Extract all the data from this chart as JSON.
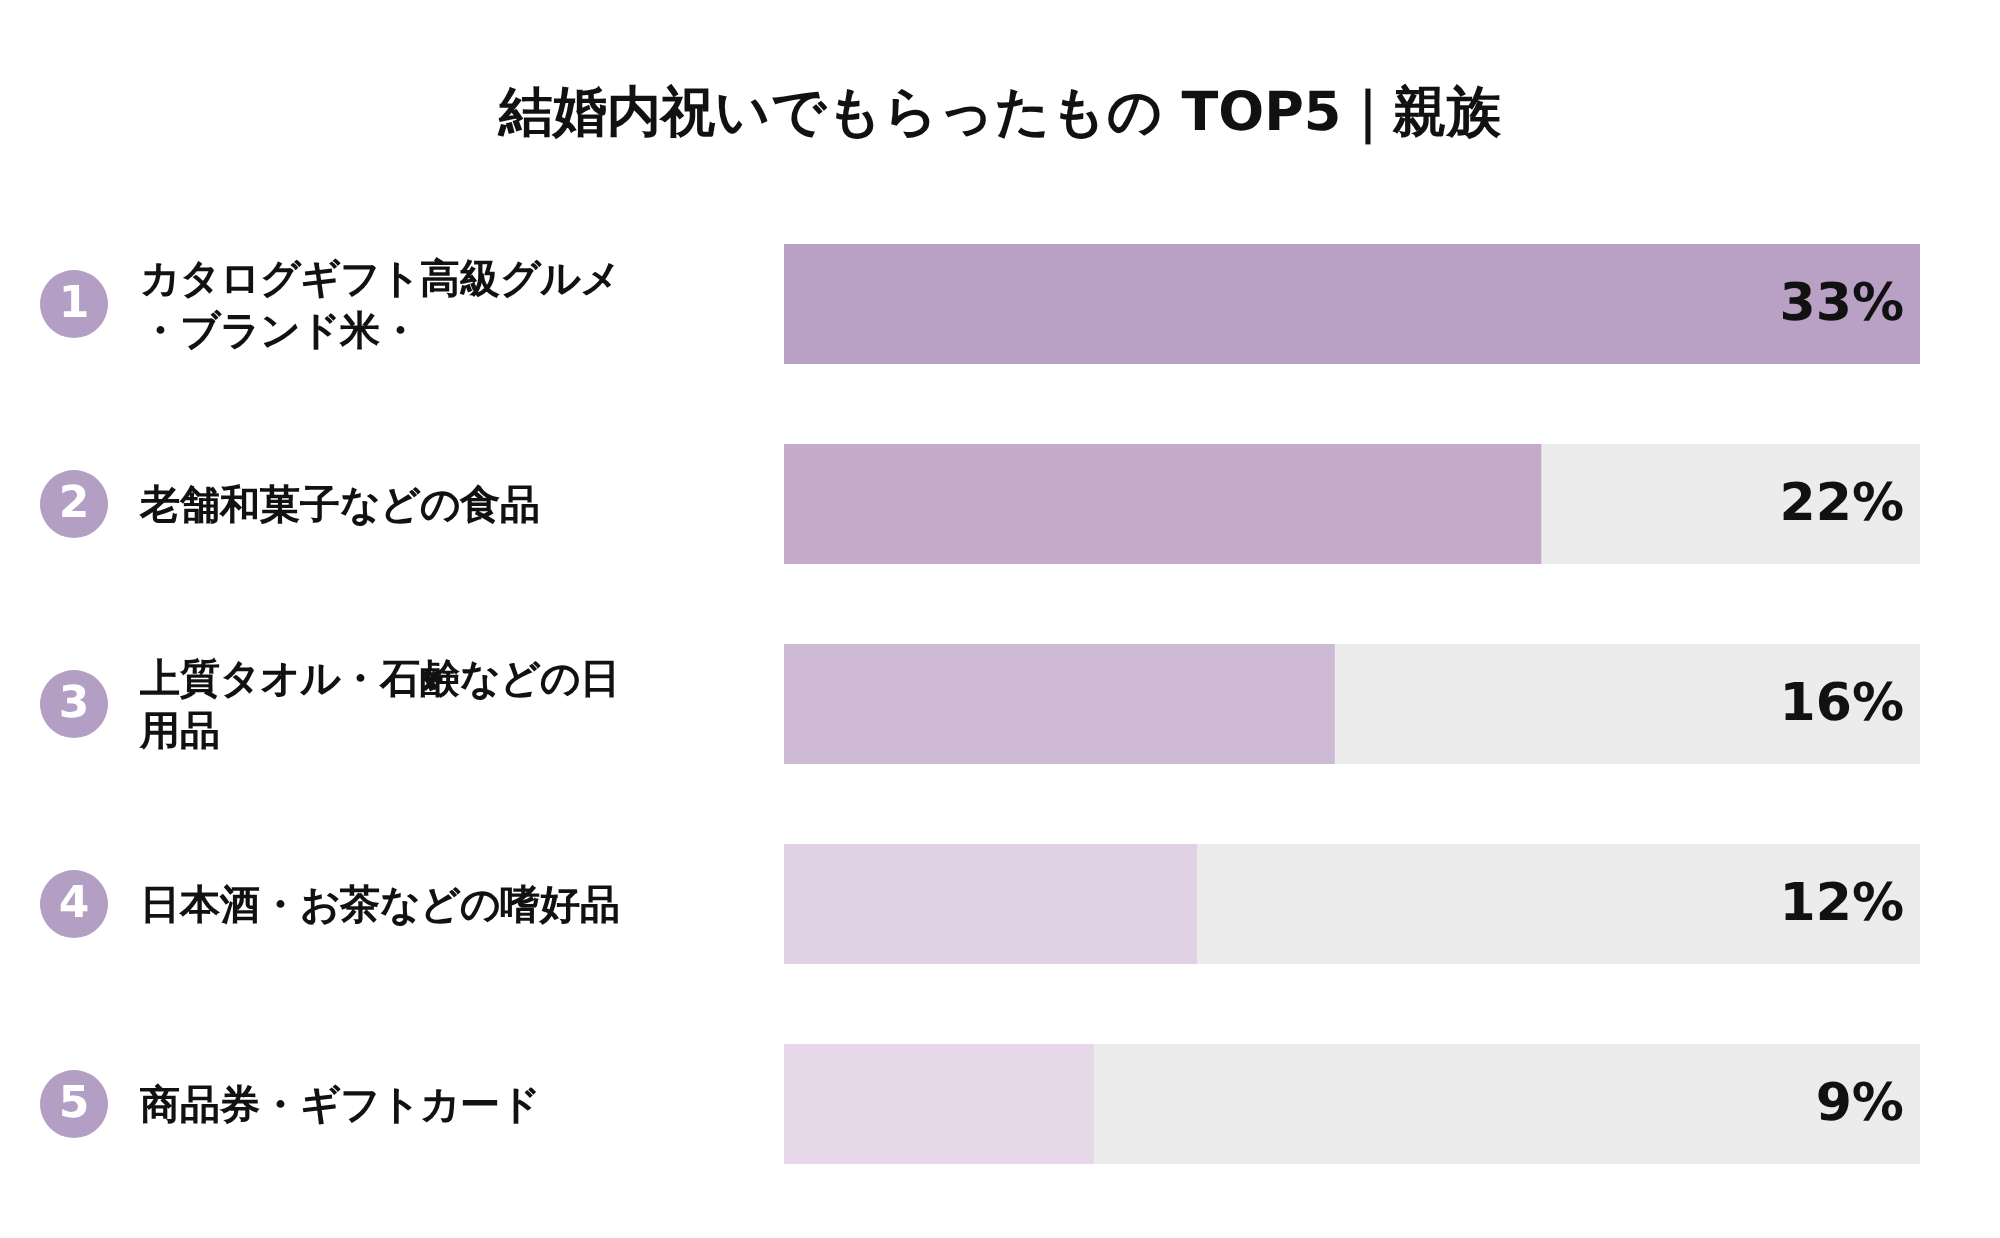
{
  "chart_data": {
    "type": "bar",
    "orientation": "horizontal",
    "title": "結婚内祝いでもらったもの TOP5｜親族",
    "categories": [
      "カタログギフト高級グルメ・ブランド米・",
      "老舗和菓子などの食品",
      "上質タオル・石鹸などの日用品",
      "日本酒・お茶などの嗜好品",
      "商品券・ギフトカード"
    ],
    "values": [
      33,
      22,
      16,
      12,
      9
    ],
    "colors": [
      "#b9a0c5",
      "#c4abca",
      "#cfbad6",
      "#e0d1e4",
      "#e6d8e9"
    ],
    "value_labels": [
      "33%",
      "22%",
      "16%",
      "12%",
      "9%"
    ],
    "annotations": [
      "1",
      "2",
      "3",
      "4",
      "5"
    ],
    "xlim": [
      0,
      33
    ],
    "tick_labels": false,
    "grid": false
  }
}
